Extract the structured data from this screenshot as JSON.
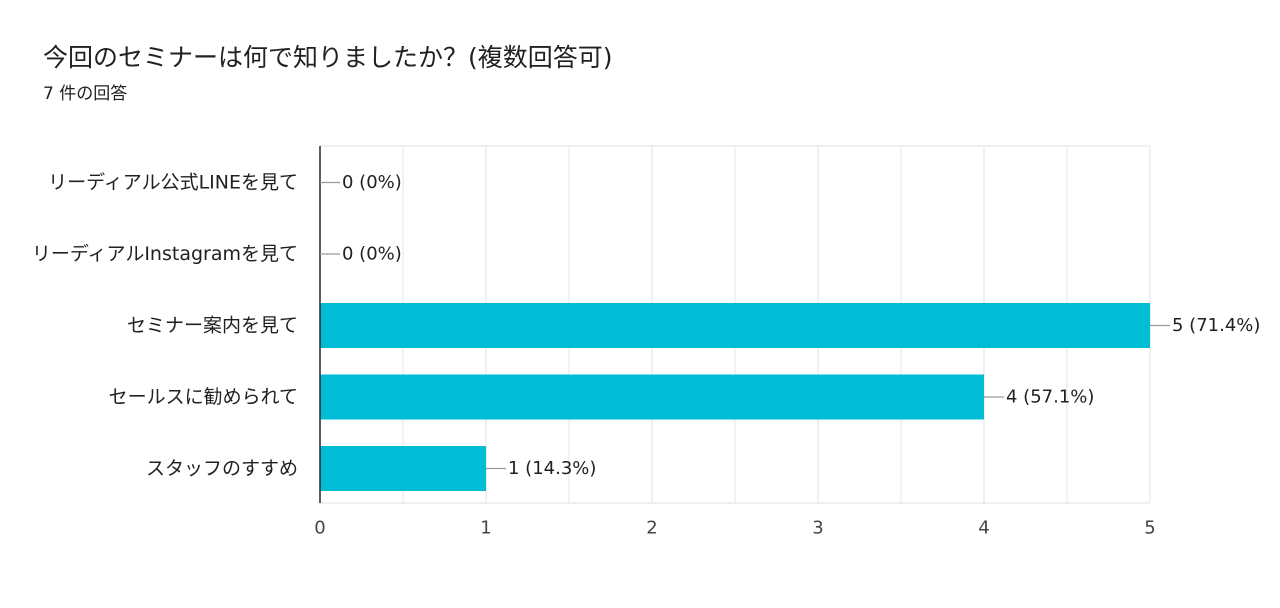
{
  "question": {
    "title": "今回のセミナーは何で知りましたか？(複数回答可)",
    "response_count": "7 件の回答"
  },
  "colors": {
    "bar": "#00BCD4",
    "grid": "#e6e6e6",
    "axis": "#333333",
    "leader": "#999999"
  },
  "chart_data": {
    "type": "bar",
    "orientation": "horizontal",
    "categories": [
      "リーディアル公式LINEを見て",
      "リーディアルInstagramを見て",
      "セミナー案内を見て",
      "セールスに勧められて",
      "スタッフのすすめ"
    ],
    "values": [
      0,
      0,
      5,
      4,
      1
    ],
    "data_labels": [
      "0 (0%)",
      "0 (0%)",
      "5 (71.4%)",
      "4 (57.1%)",
      "1 (14.3%)"
    ],
    "xlim": [
      0,
      5
    ],
    "xticks": [
      0,
      1,
      2,
      3,
      4,
      5
    ],
    "grid": true,
    "legend": "none"
  }
}
